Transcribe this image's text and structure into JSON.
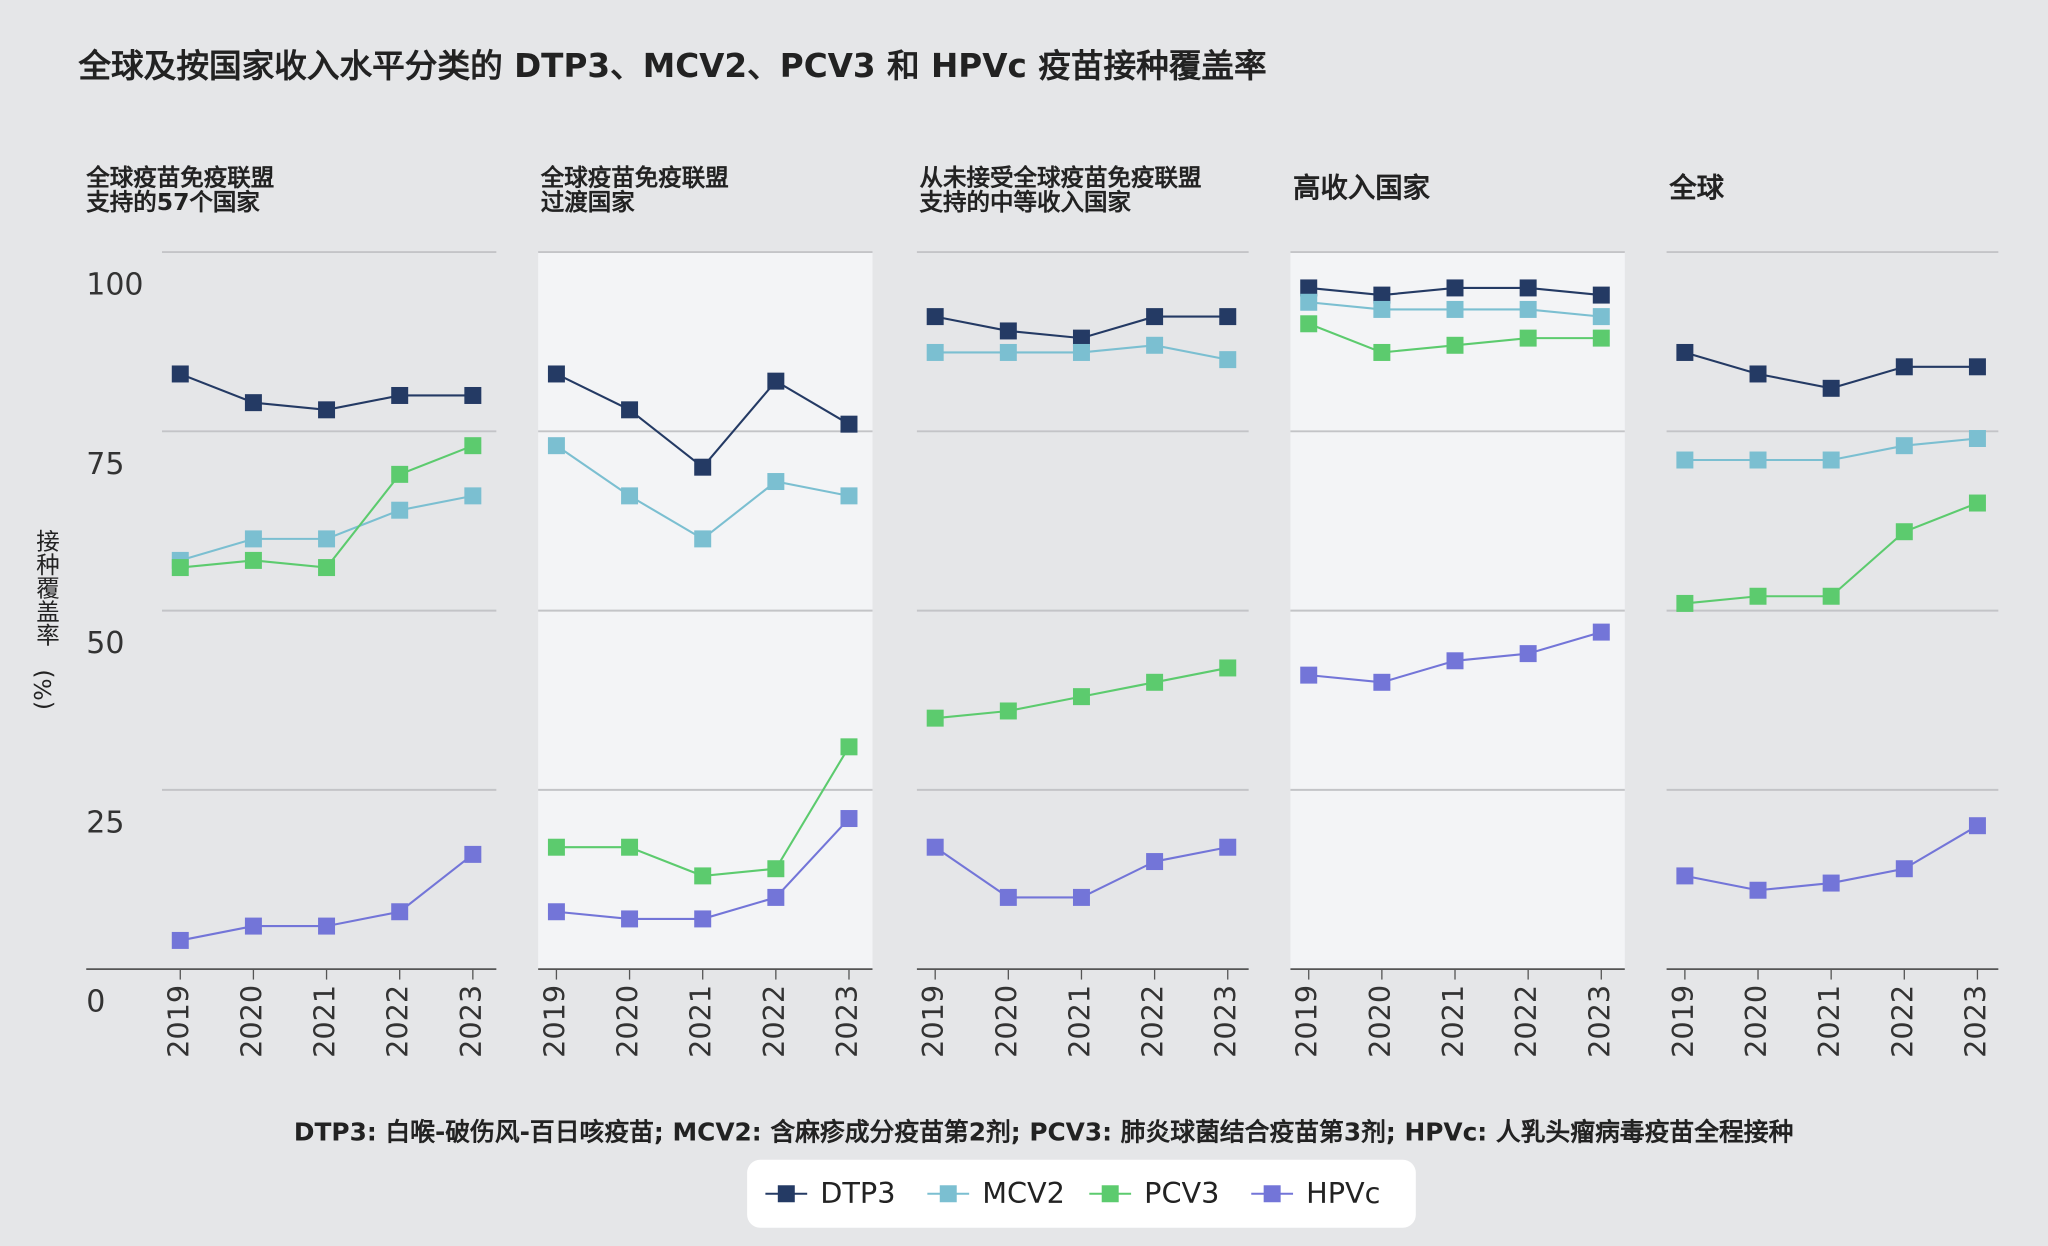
{
  "title": "全球及按国家收入水平分类的 DTP3、MCV2、PCV3 和 HPVc 疫苗接种覆盖率",
  "y_label_lines": [
    "接种覆盖率",
    "(%)"
  ],
  "footnote": "DTP3: 白喉-破伤风-百日咳疫苗; MCV2: 含麻疹成分疫苗第2剂; PCV3: 肺炎球菌结合疫苗第3剂; HPVc: 人乳头瘤病毒疫苗全程接种",
  "chart_data": [
    {
      "type": "line",
      "title_lines": [
        "全球疫苗免疫联盟",
        "支持的57个国家"
      ],
      "categories": [
        "2019",
        "2020",
        "2021",
        "2022",
        "2023"
      ],
      "ylim": [
        0,
        100
      ],
      "yticks": [
        0,
        25,
        50,
        75,
        100
      ],
      "grid": true,
      "series": [
        {
          "name": "DTP3",
          "color": "#243a64",
          "values": [
            83,
            79,
            78,
            80,
            80
          ]
        },
        {
          "name": "MCV2",
          "color": "#7bbfd1",
          "values": [
            57,
            60,
            60,
            64,
            66
          ]
        },
        {
          "name": "PCV3",
          "color": "#5ccb6e",
          "values": [
            56,
            57,
            56,
            69,
            73
          ]
        },
        {
          "name": "HPVc",
          "color": "#7375d8",
          "values": [
            4,
            6,
            6,
            8,
            16
          ]
        }
      ]
    },
    {
      "type": "line",
      "title_lines": [
        "全球疫苗免疫联盟",
        "过渡国家"
      ],
      "categories": [
        "2019",
        "2020",
        "2021",
        "2022",
        "2023"
      ],
      "ylim": [
        0,
        100
      ],
      "yticks": [
        0,
        25,
        50,
        75,
        100
      ],
      "grid": true,
      "series": [
        {
          "name": "DTP3",
          "color": "#243a64",
          "values": [
            83,
            78,
            70,
            82,
            76
          ]
        },
        {
          "name": "MCV2",
          "color": "#7bbfd1",
          "values": [
            73,
            66,
            60,
            68,
            66
          ]
        },
        {
          "name": "PCV3",
          "color": "#5ccb6e",
          "values": [
            17,
            17,
            13,
            14,
            31
          ]
        },
        {
          "name": "HPVc",
          "color": "#7375d8",
          "values": [
            8,
            7,
            7,
            10,
            21
          ]
        }
      ]
    },
    {
      "type": "line",
      "title_lines": [
        "从未接受全球疫苗免疫联盟",
        "支持的中等收入国家"
      ],
      "categories": [
        "2019",
        "2020",
        "2021",
        "2022",
        "2023"
      ],
      "ylim": [
        0,
        100
      ],
      "yticks": [
        0,
        25,
        50,
        75,
        100
      ],
      "grid": true,
      "series": [
        {
          "name": "DTP3",
          "color": "#243a64",
          "values": [
            91,
            89,
            88,
            91,
            91
          ]
        },
        {
          "name": "MCV2",
          "color": "#7bbfd1",
          "values": [
            86,
            86,
            86,
            87,
            85
          ]
        },
        {
          "name": "PCV3",
          "color": "#5ccb6e",
          "values": [
            35,
            36,
            38,
            40,
            42
          ]
        },
        {
          "name": "HPVc",
          "color": "#7375d8",
          "values": [
            17,
            10,
            10,
            15,
            17
          ]
        }
      ]
    },
    {
      "type": "line",
      "title_lines": [
        "高收入国家"
      ],
      "categories": [
        "2019",
        "2020",
        "2021",
        "2022",
        "2023"
      ],
      "ylim": [
        0,
        100
      ],
      "yticks": [
        0,
        25,
        50,
        75,
        100
      ],
      "grid": true,
      "series": [
        {
          "name": "DTP3",
          "color": "#243a64",
          "values": [
            95,
            94,
            95,
            95,
            94
          ]
        },
        {
          "name": "MCV2",
          "color": "#7bbfd1",
          "values": [
            93,
            92,
            92,
            92,
            91
          ]
        },
        {
          "name": "PCV3",
          "color": "#5ccb6e",
          "values": [
            90,
            86,
            87,
            88,
            88
          ]
        },
        {
          "name": "HPVc",
          "color": "#7375d8",
          "values": [
            41,
            40,
            43,
            44,
            47
          ]
        }
      ]
    },
    {
      "type": "line",
      "title_lines": [
        "全球"
      ],
      "categories": [
        "2019",
        "2020",
        "2021",
        "2022",
        "2023"
      ],
      "ylim": [
        0,
        100
      ],
      "yticks": [
        0,
        25,
        50,
        75,
        100
      ],
      "grid": true,
      "series": [
        {
          "name": "DTP3",
          "color": "#243a64",
          "values": [
            86,
            83,
            81,
            84,
            84
          ]
        },
        {
          "name": "MCV2",
          "color": "#7bbfd1",
          "values": [
            71,
            71,
            71,
            73,
            74
          ]
        },
        {
          "name": "PCV3",
          "color": "#5ccb6e",
          "values": [
            51,
            52,
            52,
            61,
            65
          ]
        },
        {
          "name": "HPVc",
          "color": "#7375d8",
          "values": [
            13,
            11,
            12,
            14,
            20
          ]
        }
      ]
    }
  ]
}
